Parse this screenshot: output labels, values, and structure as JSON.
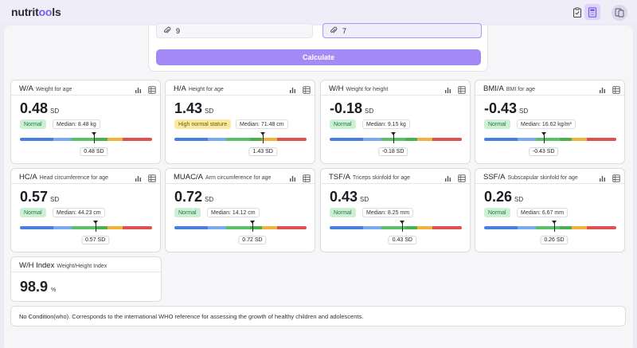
{
  "app": {
    "logo_start": "nutrit",
    "logo_oo": "oo",
    "logo_end": "ls"
  },
  "form": {
    "input1_value": "9",
    "input2_value": "7",
    "calculate_label": "Calculate"
  },
  "colors": {
    "accent": "#a48af6",
    "scale": [
      "#4a7fe0",
      "#7aaaf0",
      "#5cc06a",
      "#4caf50",
      "#f0b43c",
      "#e05050"
    ]
  },
  "cards": [
    {
      "abbr": "W/A",
      "full": "Weight for age",
      "value": "0.48",
      "unit": "SD",
      "status": "Normal",
      "status_type": "normal",
      "median": "Median: 8.48 kg",
      "sd_label": "0.48 SD",
      "marker_fraction": 0.56
    },
    {
      "abbr": "H/A",
      "full": "Height for age",
      "value": "1.43",
      "unit": "SD",
      "status": "High normal stature",
      "status_type": "high",
      "median": "Median: 71.48 cm",
      "sd_label": "1.43 SD",
      "marker_fraction": 0.67
    },
    {
      "abbr": "W/H",
      "full": "Weight for height",
      "value": "-0.18",
      "unit": "SD",
      "status": "Normal",
      "status_type": "normal",
      "median": "Median: 9.15 kg",
      "sd_label": "-0.18 SD",
      "marker_fraction": 0.48
    },
    {
      "abbr": "BMI/A",
      "full": "BMI for age",
      "value": "-0.43",
      "unit": "SD",
      "status": "Normal",
      "status_type": "normal",
      "median": "Median: 16.62 kg/m²",
      "sd_label": "-0.43 SD",
      "marker_fraction": 0.45
    },
    {
      "abbr": "HC/A",
      "full": "Head circumference for age",
      "value": "0.57",
      "unit": "SD",
      "status": "Normal",
      "status_type": "normal",
      "median": "Median: 44.23 cm",
      "sd_label": "0.57 SD",
      "marker_fraction": 0.57
    },
    {
      "abbr": "MUAC/A",
      "full": "Arm circumference for age",
      "value": "0.72",
      "unit": "SD",
      "status": "Normal",
      "status_type": "normal",
      "median": "Median: 14.12 cm",
      "sd_label": "0.72 SD",
      "marker_fraction": 0.59
    },
    {
      "abbr": "TSF/A",
      "full": "Triceps skinfold for age",
      "value": "0.43",
      "unit": "SD",
      "status": "Normal",
      "status_type": "normal",
      "median": "Median: 8.25 mm",
      "sd_label": "0.43 SD",
      "marker_fraction": 0.55
    },
    {
      "abbr": "SSF/A",
      "full": "Subscapular skinfold for age",
      "value": "0.26",
      "unit": "SD",
      "status": "Normal",
      "status_type": "normal",
      "median": "Median: 6.67 mm",
      "sd_label": "0.26 SD",
      "marker_fraction": 0.53
    }
  ],
  "wh_index": {
    "abbr": "W/H Index",
    "full": "Weight/Height Index",
    "value": "98.9",
    "unit": "%"
  },
  "note": {
    "condition": "No Condition",
    "text": " (who). Corresponds to the international WHO reference for assessing the growth of healthy children and adolescents."
  }
}
